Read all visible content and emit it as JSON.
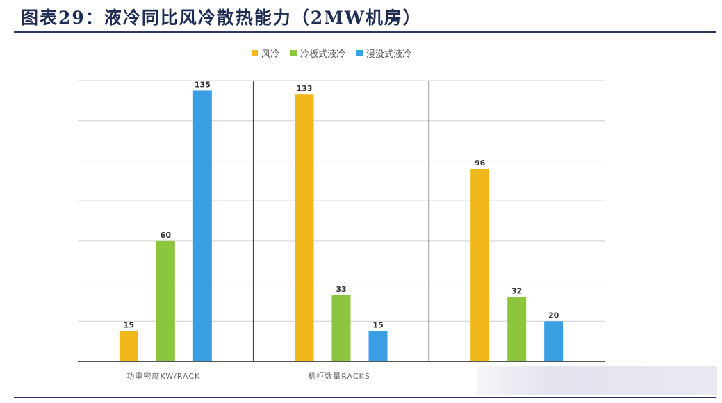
{
  "header": {
    "title": "图表29：液冷同比风冷散热能力（2MW机房）"
  },
  "chart_data": {
    "type": "bar",
    "categories": [
      "功率密度KW/RACK",
      "机柜数量RACKS",
      ""
    ],
    "series": [
      {
        "name": "风冷",
        "values": [
          15,
          133,
          96
        ],
        "color": "#f0b81a"
      },
      {
        "name": "冷板式液冷",
        "values": [
          60,
          33,
          32
        ],
        "color": "#8cc63e"
      },
      {
        "name": "浸没式液冷",
        "values": [
          135,
          15,
          20
        ],
        "color": "#3a9ee3"
      }
    ],
    "ylim": [
      0,
      140
    ],
    "grid": true,
    "legend_position": "top"
  }
}
